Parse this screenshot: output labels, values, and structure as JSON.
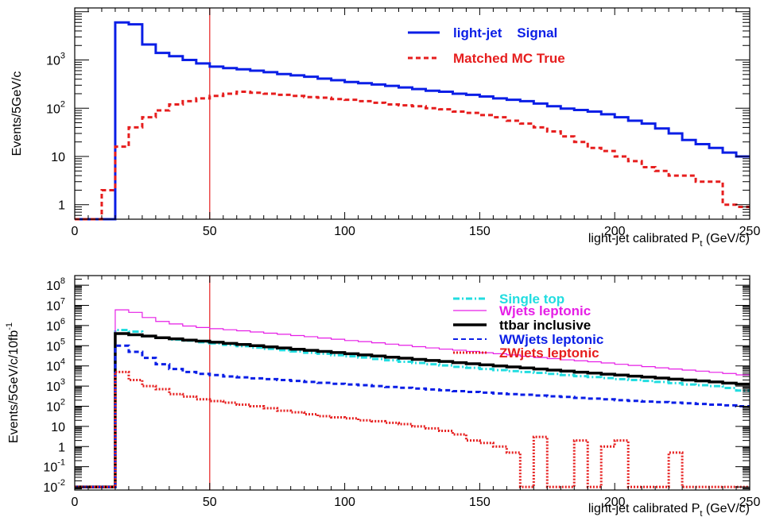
{
  "chart_data": [
    {
      "type": "line",
      "ylabel": "Events/5GeV/c",
      "xlabel": "light-jet calibrated P",
      "xlabel_sub": "t",
      "xlabel_unit": " (GeV/c)",
      "xlim": [
        0,
        250
      ],
      "ylim": [
        0.5,
        12000
      ],
      "yscale": "log",
      "x_ticks": [
        0,
        50,
        100,
        150,
        200,
        250
      ],
      "x_tick_labels": [
        "0",
        "50",
        "100",
        "150",
        "200",
        "250"
      ],
      "y_ticks": [
        1,
        10,
        100,
        1000
      ],
      "y_tick_labels": [
        {
          "base": "1",
          "exp": ""
        },
        {
          "base": "10",
          "exp": ""
        },
        {
          "base": "10",
          "exp": "2"
        },
        {
          "base": "10",
          "exp": "3"
        }
      ],
      "vline_x": 50,
      "legend_position": "top-right",
      "bin_width": 5,
      "series": [
        {
          "name": "light-jet    Signal",
          "color": "#0a1ee6",
          "style": "solid",
          "x": [
            0,
            5,
            10,
            15,
            20,
            25,
            30,
            35,
            40,
            45,
            50,
            55,
            60,
            65,
            70,
            75,
            80,
            85,
            90,
            95,
            100,
            105,
            110,
            115,
            120,
            125,
            130,
            135,
            140,
            145,
            150,
            155,
            160,
            165,
            170,
            175,
            180,
            185,
            190,
            195,
            200,
            205,
            210,
            215,
            220,
            225,
            230,
            235,
            240,
            245
          ],
          "values": [
            0.5,
            0.5,
            0.5,
            6000,
            5500,
            2100,
            1400,
            1200,
            1000,
            850,
            730,
            680,
            640,
            600,
            560,
            510,
            480,
            450,
            410,
            380,
            350,
            330,
            310,
            290,
            270,
            250,
            230,
            220,
            200,
            190,
            175,
            160,
            150,
            140,
            125,
            110,
            98,
            92,
            85,
            75,
            65,
            55,
            48,
            38,
            30,
            22,
            18,
            15,
            12,
            10
          ]
        },
        {
          "name": "Matched MC True",
          "color": "#e61e1e",
          "style": "dashed",
          "x": [
            0,
            5,
            10,
            15,
            20,
            25,
            30,
            35,
            40,
            45,
            50,
            55,
            60,
            65,
            70,
            75,
            80,
            85,
            90,
            95,
            100,
            105,
            110,
            115,
            120,
            125,
            130,
            135,
            140,
            145,
            150,
            155,
            160,
            165,
            170,
            175,
            180,
            185,
            190,
            195,
            200,
            205,
            210,
            215,
            220,
            225,
            230,
            235,
            240,
            245
          ],
          "values": [
            0.5,
            0.5,
            2,
            16,
            40,
            65,
            90,
            120,
            140,
            160,
            180,
            200,
            220,
            210,
            200,
            190,
            180,
            170,
            165,
            155,
            150,
            140,
            130,
            120,
            115,
            110,
            100,
            95,
            85,
            80,
            72,
            65,
            55,
            48,
            40,
            33,
            26,
            20,
            15,
            13,
            10,
            8,
            6,
            5,
            4,
            4,
            3,
            3,
            1,
            0.9
          ]
        }
      ]
    },
    {
      "type": "line",
      "ylabel": "Events/5GeV/c/10fb",
      "ylabel_sup": "-1",
      "xlabel": "light-jet calibrated P",
      "xlabel_sub": "t",
      "xlabel_unit": " (GeV/c)",
      "xlim": [
        0,
        250
      ],
      "ylim": [
        0.007,
        300000000
      ],
      "yscale": "log",
      "x_ticks": [
        0,
        50,
        100,
        150,
        200,
        250
      ],
      "x_tick_labels": [
        "0",
        "50",
        "100",
        "150",
        "200",
        "250"
      ],
      "y_ticks": [
        0.01,
        0.1,
        1,
        10,
        100,
        1000,
        10000,
        100000,
        1000000,
        10000000,
        100000000
      ],
      "y_tick_labels": [
        {
          "base": "10",
          "exp": "-2"
        },
        {
          "base": "10",
          "exp": "-1"
        },
        {
          "base": "1",
          "exp": ""
        },
        {
          "base": "10",
          "exp": ""
        },
        {
          "base": "10",
          "exp": "2"
        },
        {
          "base": "10",
          "exp": "3"
        },
        {
          "base": "10",
          "exp": "4"
        },
        {
          "base": "10",
          "exp": "5"
        },
        {
          "base": "10",
          "exp": "6"
        },
        {
          "base": "10",
          "exp": "7"
        },
        {
          "base": "10",
          "exp": "8"
        }
      ],
      "vline_x": 50,
      "legend_position": "top-right",
      "bin_width": 5,
      "series": [
        {
          "name": "Single top",
          "color": "#22dde0",
          "style": "dashdot",
          "x": [
            0,
            5,
            10,
            15,
            20,
            25,
            30,
            35,
            40,
            45,
            50,
            55,
            60,
            65,
            70,
            75,
            80,
            85,
            90,
            95,
            100,
            105,
            110,
            115,
            120,
            125,
            130,
            135,
            140,
            145,
            150,
            155,
            160,
            165,
            170,
            175,
            180,
            185,
            190,
            195,
            200,
            205,
            210,
            215,
            220,
            225,
            230,
            235,
            240,
            245
          ],
          "values": [
            0.01,
            0.01,
            0.01,
            600000,
            500000,
            300000,
            250000,
            200000,
            180000,
            150000,
            130000,
            110000,
            95000,
            80000,
            70000,
            60000,
            52000,
            45000,
            40000,
            34000,
            30000,
            26000,
            22000,
            19000,
            16000,
            14000,
            12000,
            10500,
            9000,
            8000,
            7000,
            6200,
            5500,
            5000,
            4500,
            4000,
            3500,
            3100,
            2800,
            2500,
            2200,
            2000,
            1800,
            1600,
            1400,
            1200,
            1100,
            1000,
            800,
            600
          ]
        },
        {
          "name": "Wjets leptonic",
          "color": "#e61ee6",
          "style": "solid-thin",
          "x": [
            0,
            5,
            10,
            15,
            20,
            25,
            30,
            35,
            40,
            45,
            50,
            55,
            60,
            65,
            70,
            75,
            80,
            85,
            90,
            95,
            100,
            105,
            110,
            115,
            120,
            125,
            130,
            135,
            140,
            145,
            150,
            155,
            160,
            165,
            170,
            175,
            180,
            185,
            190,
            195,
            200,
            205,
            210,
            215,
            220,
            225,
            230,
            235,
            240,
            245
          ],
          "values": [
            0.01,
            0.01,
            0.01,
            6000000,
            4500000,
            2500000,
            1600000,
            1200000,
            950000,
            800000,
            700000,
            620000,
            550000,
            480000,
            420000,
            370000,
            320000,
            280000,
            240000,
            210000,
            180000,
            160000,
            140000,
            120000,
            105000,
            90000,
            78000,
            68000,
            60000,
            52000,
            45000,
            40000,
            35000,
            30000,
            26000,
            23000,
            20000,
            18000,
            16000,
            14000,
            12000,
            10500,
            9200,
            8000,
            7000,
            6200,
            5500,
            4800,
            4200,
            3600
          ]
        },
        {
          "name": "ttbar inclusive",
          "color": "#000000",
          "style": "solid-thick",
          "x": [
            0,
            5,
            10,
            15,
            20,
            25,
            30,
            35,
            40,
            45,
            50,
            55,
            60,
            65,
            70,
            75,
            80,
            85,
            90,
            95,
            100,
            105,
            110,
            115,
            120,
            125,
            130,
            135,
            140,
            145,
            150,
            155,
            160,
            165,
            170,
            175,
            180,
            185,
            190,
            195,
            200,
            205,
            210,
            215,
            220,
            225,
            230,
            235,
            240,
            245
          ],
          "values": [
            0.01,
            0.01,
            0.01,
            400000,
            350000,
            300000,
            250000,
            220000,
            190000,
            170000,
            150000,
            130000,
            115000,
            100000,
            88000,
            77000,
            67000,
            59000,
            52000,
            46000,
            40000,
            35000,
            31000,
            27000,
            24000,
            21000,
            18500,
            16500,
            14500,
            12800,
            11300,
            10000,
            8900,
            7900,
            7000,
            6200,
            5500,
            4900,
            4400,
            3900,
            3500,
            3100,
            2800,
            2500,
            2200,
            2000,
            1800,
            1600,
            1400,
            1250
          ]
        },
        {
          "name": "WWjets leptonic",
          "color": "#0a1ee6",
          "style": "dashed",
          "x": [
            0,
            5,
            10,
            15,
            20,
            25,
            30,
            35,
            40,
            45,
            50,
            55,
            60,
            65,
            70,
            75,
            80,
            85,
            90,
            95,
            100,
            105,
            110,
            115,
            120,
            125,
            130,
            135,
            140,
            145,
            150,
            155,
            160,
            165,
            170,
            175,
            180,
            185,
            190,
            195,
            200,
            205,
            210,
            215,
            220,
            225,
            230,
            235,
            240,
            245
          ],
          "values": [
            0.01,
            0.01,
            0.01,
            100000,
            50000,
            25000,
            12000,
            7000,
            5000,
            4000,
            3500,
            3000,
            2700,
            2400,
            2200,
            2000,
            1800,
            1600,
            1450,
            1300,
            1200,
            1100,
            1000,
            900,
            820,
            750,
            680,
            620,
            560,
            510,
            470,
            430,
            400,
            370,
            340,
            310,
            290,
            260,
            240,
            220,
            200,
            185,
            170,
            160,
            150,
            140,
            130,
            120,
            110,
            100
          ]
        },
        {
          "name": "ZWjets leptonic",
          "color": "#e61e1e",
          "style": "dotted",
          "x": [
            0,
            5,
            10,
            15,
            20,
            25,
            30,
            35,
            40,
            45,
            50,
            55,
            60,
            65,
            70,
            75,
            80,
            85,
            90,
            95,
            100,
            105,
            110,
            115,
            120,
            125,
            130,
            135,
            140,
            145,
            150,
            155,
            160,
            165,
            170,
            175,
            180,
            185,
            190,
            195,
            200,
            205,
            210,
            215,
            220,
            225,
            230,
            235,
            240,
            245
          ],
          "values": [
            0.01,
            0.01,
            0.01,
            5000,
            2000,
            1000,
            700,
            400,
            300,
            220,
            180,
            150,
            120,
            100,
            80,
            60,
            50,
            40,
            32,
            28,
            25,
            20,
            18,
            15,
            13,
            10,
            8,
            6,
            4,
            2,
            1.5,
            1,
            0.5,
            0.01,
            3,
            0.01,
            0.01,
            2,
            0.01,
            1,
            2,
            0.01,
            0.01,
            0.01,
            0.5,
            0.01,
            0.01,
            0.01,
            0.01,
            0.01
          ]
        }
      ]
    }
  ]
}
